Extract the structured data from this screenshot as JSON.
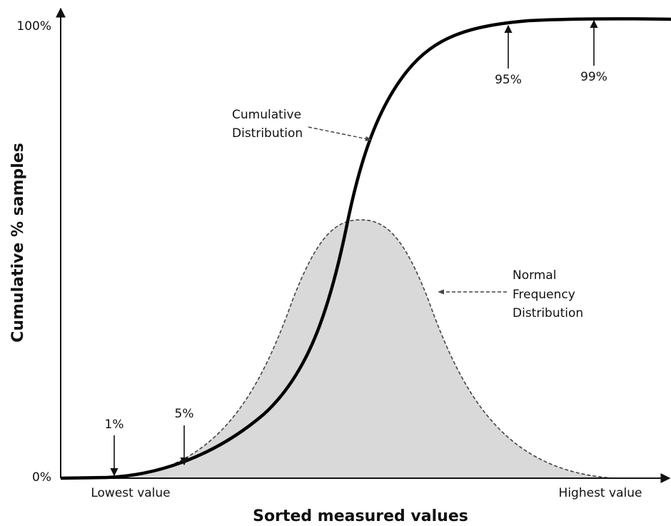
{
  "y_axis": {
    "title": "Cumulative % samples",
    "top_label": "100%",
    "bottom_label": "0%"
  },
  "x_axis": {
    "title": "Sorted measured values",
    "left_label": "Lowest value",
    "right_label": "Highest value"
  },
  "annotations": {
    "cumulative": [
      "Cumulative",
      "Distribution"
    ],
    "normal": [
      "Normal",
      "Frequency",
      "Distribution"
    ],
    "percentiles": [
      "1%",
      "5%",
      "95%",
      "99%"
    ]
  }
}
